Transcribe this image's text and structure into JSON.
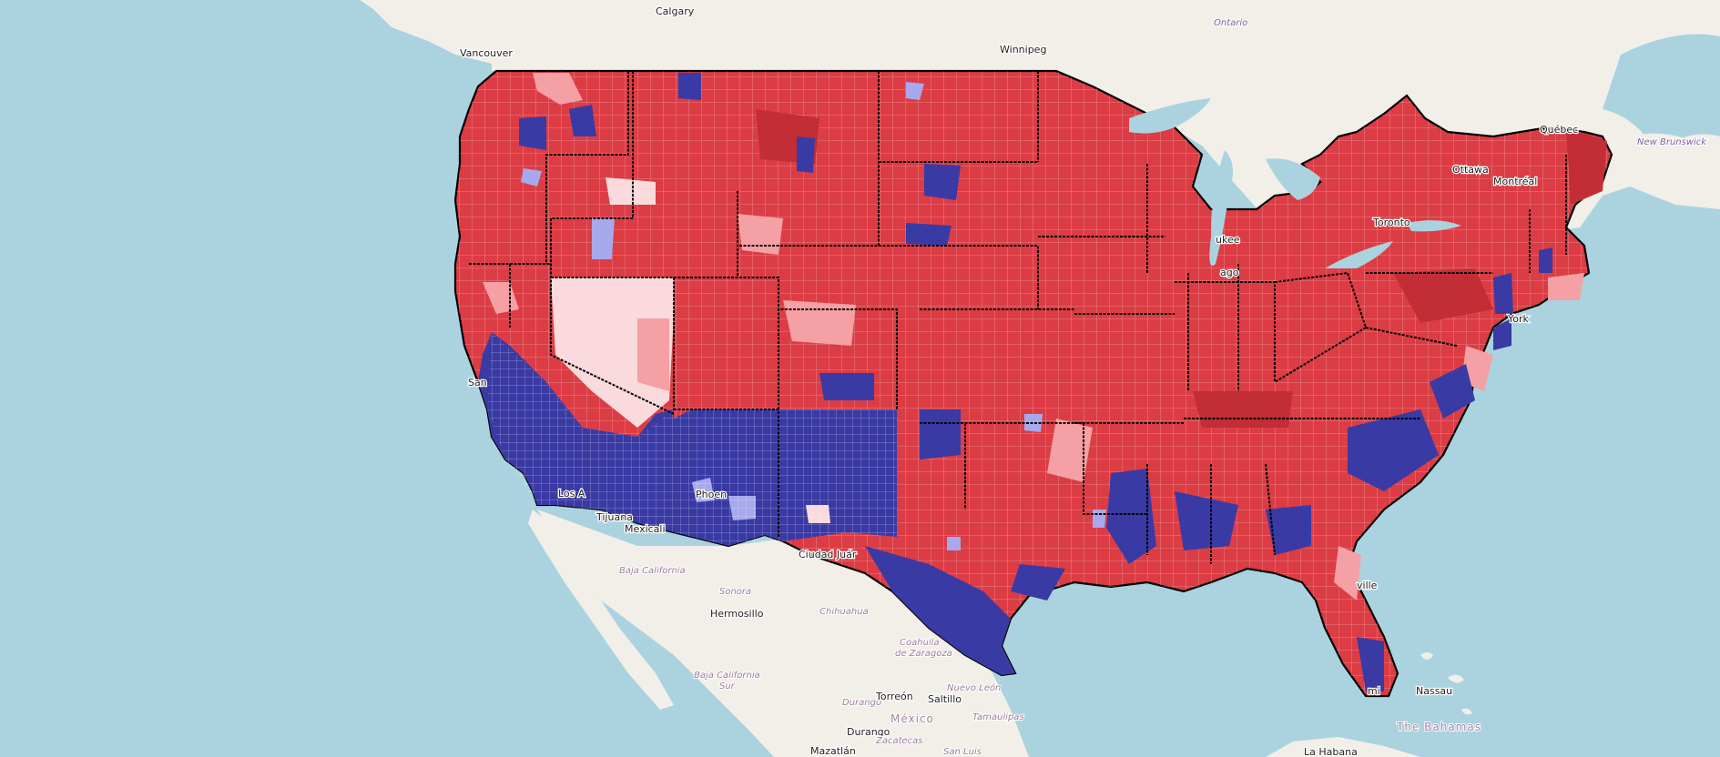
{
  "map": {
    "labels": {
      "calgary": "Calgary",
      "ontario": "Ontario",
      "vancouver": "Vancouver",
      "winnipeg": "Winnipeg",
      "quebec": "Québec",
      "new_brunswick": "New Brunswick",
      "ottawa": "Ottawa",
      "montreal": "Montréal",
      "toronto": "Toronto",
      "milwaukee": "ukee",
      "chicago": "ago",
      "new_york": "York",
      "san_francisco": "San",
      "los_angeles": "Los A",
      "tijuana": "Tijuana",
      "mexicali": "Mexicali",
      "phoenix": "Phoen",
      "ciudad_juarez": "Ciudad Juár",
      "baja_california": "Baja California",
      "sonora": "Sonora",
      "hermosillo": "Hermosillo",
      "chihuahua": "Chihuahua",
      "coahuila": "Coahuila",
      "de_zaragoza": "de Zaragoza",
      "nuevo_leon": "Nuevo León",
      "baja_california_sur_1": "Baja California",
      "baja_california_sur_2": "Sur",
      "durango_state": "Durango",
      "torreon": "Torreón",
      "saltillo": "Saltillo",
      "tamaulipas": "Tamaulipas",
      "mexico": "México",
      "durango_city": "Durango",
      "zacatecas": "Zacatecas",
      "san_luis": "San Luis",
      "mazatlan": "Mazatlán",
      "jacksonville": "ville",
      "miami": "mi",
      "nassau": "Nassau",
      "bahamas": "The Bahamas",
      "la_habana": "La Habana"
    },
    "colors": {
      "ocean": "#aad3df",
      "land": "#f2efe9",
      "strong_rep": "#dc3c44",
      "mid_rep": "#e8565c",
      "light_rep": "#f4a0a4",
      "pale_rep": "#fadadc",
      "strong_dem": "#3a3aa5",
      "light_dem": "#a8a8ec",
      "state_border": "#000000"
    }
  }
}
